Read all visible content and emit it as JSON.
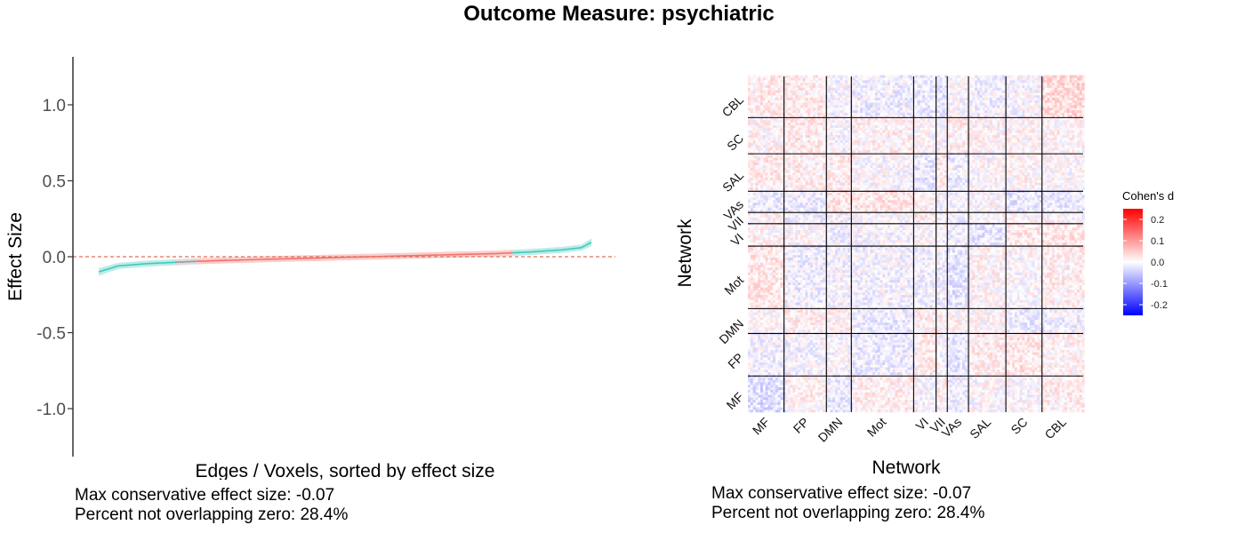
{
  "title": "Outcome Measure: psychiatric",
  "chart_data": [
    {
      "type": "line",
      "xlabel": "Edges / Voxels, sorted by effect size",
      "ylabel": "Effect Size",
      "ylim": [
        -1.3,
        1.3
      ],
      "yticks": [
        1.0,
        0.5,
        0.0,
        -0.5,
        -1.0
      ],
      "ytick_labels": [
        "1.0",
        "0.5",
        "0.0",
        "-0.5",
        "-1.0"
      ],
      "reference_line": 0.0,
      "x": [
        0,
        0.04,
        0.1,
        0.2,
        0.3,
        0.4,
        0.5,
        0.6,
        0.7,
        0.8,
        0.87,
        0.94,
        0.98,
        1.0
      ],
      "effect_size": [
        -0.1,
        -0.06,
        -0.045,
        -0.03,
        -0.02,
        -0.012,
        -0.004,
        0.004,
        0.012,
        0.02,
        0.03,
        0.045,
        0.06,
        0.095
      ],
      "ci_halfwidth": [
        0.025,
        0.02,
        0.02,
        0.02,
        0.02,
        0.02,
        0.02,
        0.02,
        0.02,
        0.02,
        0.02,
        0.02,
        0.02,
        0.025
      ],
      "segments": [
        {
          "from": 0.0,
          "to": 0.155,
          "color": "#3ec9bb",
          "meaning": "overlap-negative"
        },
        {
          "from": 0.155,
          "to": 0.2,
          "color": "#9a9a9a",
          "meaning": "transition"
        },
        {
          "from": 0.2,
          "to": 0.84,
          "color": "#f0736c",
          "meaning": "overlapping-zero"
        },
        {
          "from": 0.84,
          "to": 1.0,
          "color": "#3ec9bb",
          "meaning": "overlap-positive"
        }
      ],
      "colors": {
        "not_overlapping": "#3ec9bb",
        "overlapping": "#f0736c",
        "reference": "#e0705a"
      },
      "annotations": [
        "Max conservative effect size: -0.07",
        "Percent not overlapping zero: 28.4%"
      ]
    },
    {
      "type": "heatmap",
      "xlabel": "Network",
      "ylabel": "Network",
      "x_networks": [
        "MF",
        "FP",
        "DMN",
        "Mot",
        "VI",
        "VII",
        "VAs",
        "SAL",
        "SC",
        "CBL"
      ],
      "y_networks": [
        "MF",
        "FP",
        "DMN",
        "Mot",
        "VI",
        "VII",
        "VAs",
        "SAL",
        "SC",
        "CBL"
      ],
      "network_sizes": [
        29,
        34,
        20,
        50,
        18,
        9,
        17,
        30,
        29,
        33
      ],
      "legend": {
        "title": "Cohen's d",
        "ticks": [
          0.2,
          0.1,
          0.0,
          -0.1,
          -0.2
        ],
        "tick_labels": [
          "0.2",
          "0.1",
          "0.0",
          "-0.1",
          "-0.2"
        ],
        "range": [
          -0.25,
          0.25
        ],
        "position": "right"
      },
      "colors": {
        "low": "#0000ff",
        "mid": "#ffffff",
        "high": "#ff0000"
      },
      "annotations": [
        "Max conservative effect size: -0.07",
        "Percent not overlapping zero: 28.4%"
      ]
    }
  ]
}
